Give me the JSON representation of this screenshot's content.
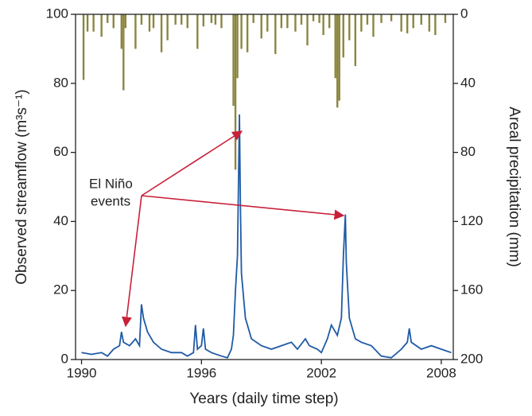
{
  "chart_data": {
    "type": "line",
    "x_label": "Years (daily time step)",
    "y_label": "Observed streamflow (m³s⁻¹)",
    "y2_label": "Areal precipitation (mm)",
    "annotation": [
      "El Niño",
      "events"
    ],
    "annotation_color": "#c8203a",
    "xlim": [
      1989.7,
      2008.6
    ],
    "xticks": [
      1990,
      1996,
      2002,
      2008
    ],
    "ylim": [
      0,
      100
    ],
    "yticks": [
      0,
      20,
      40,
      60,
      80,
      100
    ],
    "y2lim": [
      200,
      0
    ],
    "y2ticks": [
      0,
      40,
      80,
      120,
      160,
      200
    ],
    "series": [
      {
        "type": "line",
        "color": "#1f5aa6",
        "x": [
          1990.0,
          1990.5,
          1991.0,
          1991.3,
          1991.6,
          1991.9,
          1992.0,
          1992.1,
          1992.4,
          1992.7,
          1992.9,
          1993.0,
          1993.1,
          1993.3,
          1993.6,
          1994.0,
          1994.5,
          1995.0,
          1995.3,
          1995.6,
          1995.7,
          1995.8,
          1996.0,
          1996.1,
          1996.2,
          1996.5,
          1997.0,
          1997.3,
          1997.5,
          1997.6,
          1997.7,
          1997.8,
          1997.9,
          1997.95,
          1998.0,
          1998.2,
          1998.5,
          1999.0,
          1999.5,
          2000.0,
          2000.5,
          2000.8,
          2001.2,
          2001.4,
          2001.8,
          2002.0,
          2002.3,
          2002.5,
          2002.8,
          2003.0,
          2003.1,
          2003.2,
          2003.25,
          2003.4,
          2003.7,
          2004.0,
          2004.5,
          2005.0,
          2005.5,
          2006.0,
          2006.3,
          2006.4,
          2006.5,
          2007.0,
          2007.5,
          2008.0,
          2008.5
        ],
        "values": [
          2,
          1.5,
          2,
          1,
          3,
          4,
          8,
          5,
          4,
          6,
          4,
          16,
          12,
          8,
          5,
          3,
          2,
          2,
          1,
          2,
          10,
          3,
          4,
          9,
          3,
          2,
          1,
          0.5,
          3,
          7,
          20,
          30,
          71,
          45,
          25,
          12,
          6,
          4,
          3,
          4,
          5,
          3,
          6,
          4,
          3,
          2,
          6,
          10,
          7,
          12,
          30,
          42,
          28,
          12,
          6,
          5,
          4,
          1,
          0.5,
          3,
          5,
          9,
          5,
          3,
          4,
          3,
          2
        ]
      },
      {
        "type": "bar",
        "axis": "y2",
        "color": "#8b8640",
        "x": [
          1990.1,
          1990.3,
          1990.6,
          1991.0,
          1991.3,
          1991.6,
          1992.0,
          1992.1,
          1992.2,
          1992.7,
          1993.0,
          1993.4,
          1993.6,
          1994.0,
          1994.3,
          1994.7,
          1995.0,
          1995.3,
          1995.8,
          1996.1,
          1996.5,
          1996.7,
          1997.0,
          1997.6,
          1997.7,
          1997.8,
          1998.0,
          1998.3,
          1998.6,
          1999.0,
          1999.3,
          1999.7,
          2000.0,
          2000.3,
          2000.7,
          2001.0,
          2001.3,
          2001.6,
          2001.9,
          2002.1,
          2002.4,
          2002.7,
          2002.8,
          2002.9,
          2003.1,
          2003.4,
          2003.7,
          2004.0,
          2004.3,
          2004.6,
          2005.0,
          2005.5,
          2006.0,
          2006.3,
          2006.6,
          2007.0,
          2007.4,
          2007.7,
          2008.2
        ],
        "values": [
          38,
          10,
          10,
          13,
          5,
          8,
          20,
          44,
          8,
          20,
          6,
          10,
          8,
          22,
          15,
          6,
          6,
          8,
          20,
          7,
          5,
          6,
          8,
          53,
          90,
          37,
          20,
          22,
          5,
          14,
          10,
          23,
          8,
          8,
          10,
          6,
          18,
          4,
          5,
          12,
          8,
          37,
          54,
          50,
          25,
          15,
          30,
          10,
          6,
          13,
          5,
          4,
          10,
          11,
          8,
          6,
          10,
          12,
          5
        ]
      }
    ]
  }
}
